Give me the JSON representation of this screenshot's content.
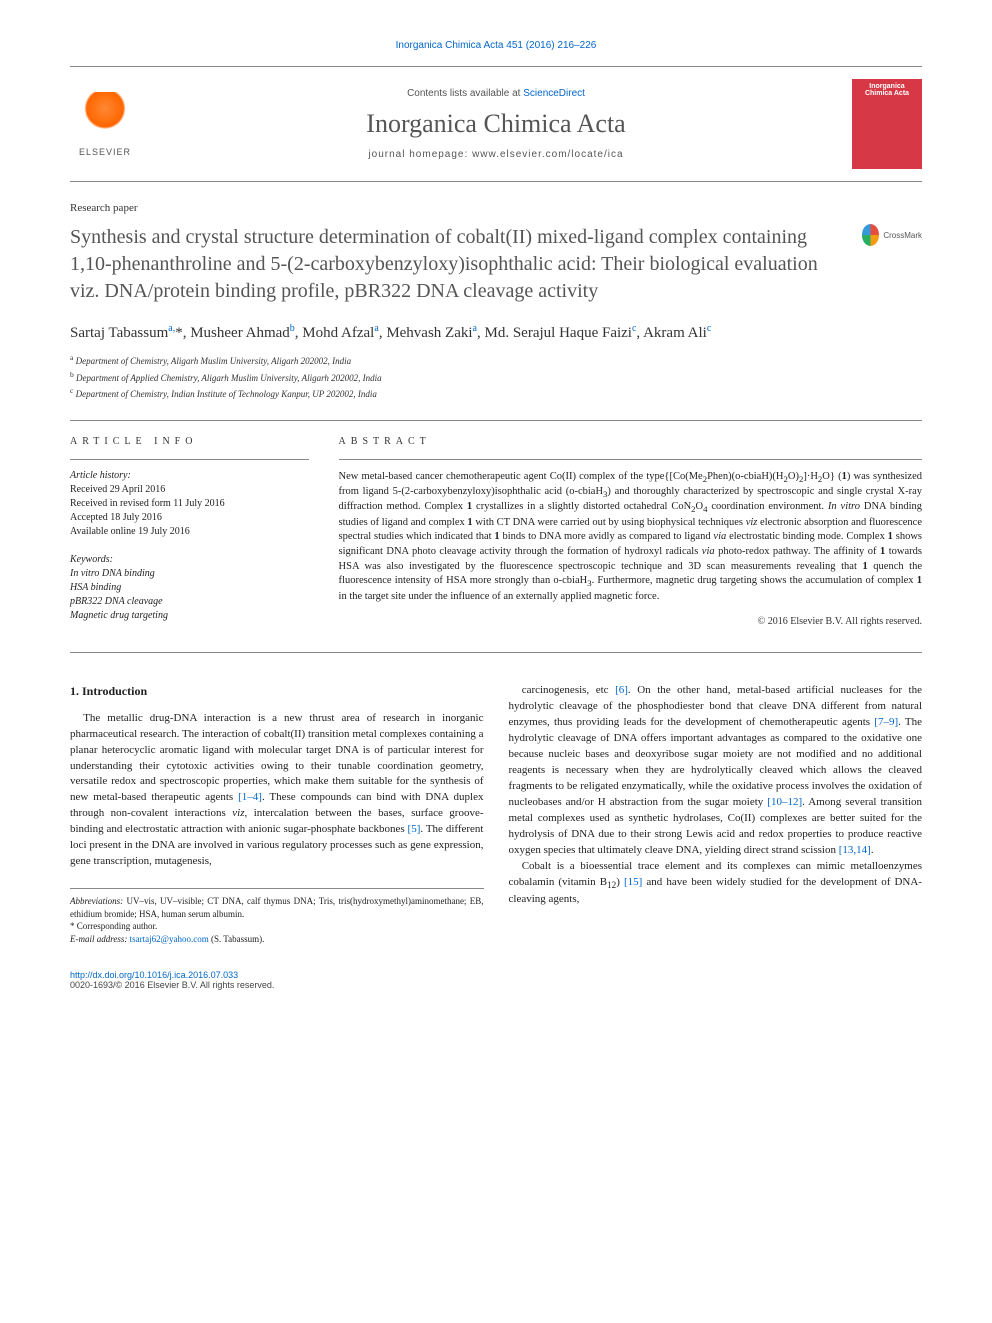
{
  "citation": {
    "text": "Inorganica Chimica Acta 451 (2016) 216–226"
  },
  "header": {
    "contents_prefix": "Contents lists available at ",
    "contents_link": "ScienceDirect",
    "journal_name": "Inorganica Chimica Acta",
    "homepage_prefix": "journal homepage: ",
    "homepage_url": "www.elsevier.com/locate/ica",
    "elsevier_label": "ELSEVIER",
    "cover_line1": "Inorganica",
    "cover_line2": "Chimica Acta"
  },
  "paper_type": "Research paper",
  "title": "Synthesis and crystal structure determination of cobalt(II) mixed-ligand complex containing 1,10-phenanthroline and 5-(2-carboxybenzyloxy)isophthalic acid: Their biological evaluation viz. DNA/protein binding profile, pBR322 DNA cleavage activity",
  "crossmark_label": "CrossMark",
  "authors_html": "Sartaj Tabassum<sup>a,</sup>*, Musheer Ahmad<sup>b</sup>, Mohd Afzal<sup>a</sup>, Mehvash Zaki<sup>a</sup>, Md. Serajul Haque Faizi<sup>c</sup>, Akram Ali<sup>c</sup>",
  "affiliations": [
    {
      "sup": "a",
      "text": "Department of Chemistry, Aligarh Muslim University, Aligarh 202002, India"
    },
    {
      "sup": "b",
      "text": "Department of Applied Chemistry, Aligarh Muslim University, Aligarh 202002, India"
    },
    {
      "sup": "c",
      "text": "Department of Chemistry, Indian Institute of Technology Kanpur, UP 202002, India"
    }
  ],
  "info": {
    "header": "ARTICLE INFO",
    "history_label": "Article history:",
    "history": [
      "Received 29 April 2016",
      "Received in revised form 11 July 2016",
      "Accepted 18 July 2016",
      "Available online 19 July 2016"
    ],
    "keywords_label": "Keywords:",
    "keywords": [
      "In vitro DNA binding",
      "HSA binding",
      "pBR322 DNA cleavage",
      "Magnetic drug targeting"
    ]
  },
  "abstract": {
    "header": "ABSTRACT",
    "text_html": "New metal-based cancer chemotherapeutic agent Co(II) complex of the type{[Co(Me<sub>2</sub>Phen)(o-cbiaH)(H<sub>2</sub>O)<sub>2</sub>]·H<sub>2</sub>O} (<b>1</b>) was synthesized from ligand 5-(2-carboxybenzyloxy)isophthalic acid (o-cbiaH<sub>3</sub>) and thoroughly characterized by spectroscopic and single crystal X-ray diffraction method. Complex <b>1</b> crystallizes in a slightly distorted octahedral CoN<sub>2</sub>O<sub>4</sub> coordination environment. <em>In vitro</em> DNA binding studies of ligand and complex <b>1</b> with CT DNA were carried out by using biophysical techniques <em>viz</em> electronic absorption and fluorescence spectral studies which indicated that <b>1</b> binds to DNA more avidly as compared to ligand <em>via</em> electrostatic binding mode. Complex <b>1</b> shows significant DNA photo cleavage activity through the formation of hydroxyl radicals <em>via</em> photo-redox pathway. The affinity of <b>1</b> towards HSA was also investigated by the fluorescence spectroscopic technique and 3D scan measurements revealing that <b>1</b> quench the fluorescence intensity of HSA more strongly than o-cbiaH<sub>3</sub>. Furthermore, magnetic drug targeting shows the accumulation of complex <b>1</b> in the target site under the influence of an externally applied magnetic force.",
    "copyright": "© 2016 Elsevier B.V. All rights reserved."
  },
  "body": {
    "intro_heading": "1. Introduction",
    "col1_html": "The metallic drug-DNA interaction is a new thrust area of research in inorganic pharmaceutical research. The interaction of cobalt(II) transition metal complexes containing a planar heterocyclic aromatic ligand with molecular target DNA is of particular interest for understanding their cytotoxic activities owing to their tunable coordination geometry, versatile redox and spectroscopic properties, which make them suitable for the synthesis of new metal-based therapeutic agents <span class='ref'>[1–4]</span>. These compounds can bind with DNA duplex through non-covalent interactions <em>viz</em>, intercalation between the bases, surface groove-binding and electrostatic attraction with anionic sugar-phosphate backbones <span class='ref'>[5]</span>. The different loci present in the DNA are involved in various regulatory processes such as gene expression, gene transcription, mutagenesis,",
    "col2_html": "carcinogenesis, etc <span class='ref'>[6]</span>. On the other hand, metal-based artificial nucleases for the hydrolytic cleavage of the phosphodiester bond that cleave DNA different from natural enzymes, thus providing leads for the development of chemotherapeutic agents <span class='ref'>[7–9]</span>. The hydrolytic cleavage of DNA offers important advantages as compared to the oxidative one because nucleic bases and deoxyribose sugar moiety are not modified and no additional reagents is necessary when they are hydrolytically cleaved which allows the cleaved fragments to be religated enzymatically, while the oxidative process involves the oxidation of nucleobases and/or H abstraction from the sugar moiety <span class='ref'>[10–12]</span>. Among several transition metal complexes used as synthetic hydrolases, Co(II) complexes are better suited for the hydrolysis of DNA due to their strong Lewis acid and redox properties to produce reactive oxygen species that ultimately cleave DNA, yielding direct strand scission <span class='ref'>[13,14]</span>.",
    "col2_p2_html": "Cobalt is a bioessential trace element and its complexes can mimic metalloenzymes cobalamin (vitamin B<sub>12</sub>) <span class='ref'>[15]</span> and have been widely studied for the development of DNA-cleaving agents,"
  },
  "footnotes": {
    "abbrev_html": "<em>Abbreviations:</em> UV–vis, UV–visible; CT DNA, calf thymus DNA; Tris, tris(hydroxymethyl)aminomethane; EB, ethidium bromide; HSA, human serum albumin.",
    "corr": "* Corresponding author.",
    "email_label": "E-mail address:",
    "email": "tsartaj62@yahoo.com",
    "email_who": "(S. Tabassum)."
  },
  "doi": {
    "url": "http://dx.doi.org/10.1016/j.ica.2016.07.033",
    "issn_line": "0020-1693/© 2016 Elsevier B.V. All rights reserved."
  },
  "colors": {
    "link": "#0066cc",
    "elsevier_orange": "#ff6600",
    "cover_red": "#d63845",
    "text": "#222222",
    "muted": "#555555",
    "rule": "#888888"
  },
  "typography": {
    "title_fontsize": 20,
    "journal_fontsize": 26,
    "authors_fontsize": 15,
    "body_fontsize": 11,
    "abstract_fontsize": 10.5,
    "info_fontsize": 10,
    "footnote_fontsize": 9
  }
}
